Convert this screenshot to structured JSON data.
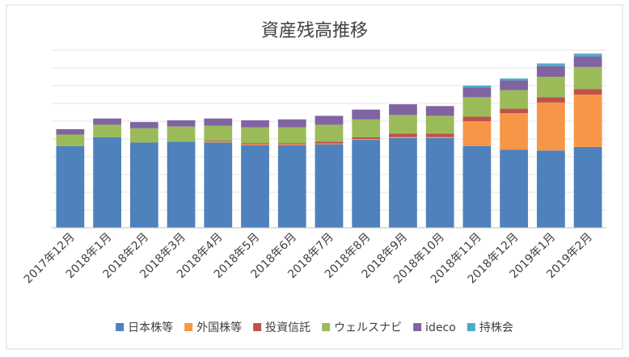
{
  "chart_data": {
    "type": "bar",
    "stacked": true,
    "title": "資産残高推移",
    "xlabel": "",
    "ylabel": "",
    "ylim": [
      0,
      100
    ],
    "y_tick_labels_visible": false,
    "legend_position": "bottom",
    "categories": [
      "2017年12月",
      "2018年1月",
      "2018年2月",
      "2018年3月",
      "2018年4月",
      "2018年5月",
      "2018年6月",
      "2018年7月",
      "2018年8月",
      "2018年9月",
      "2018年10月",
      "2018年11月",
      "2018年12月",
      "2019年1月",
      "2019年2月"
    ],
    "series": [
      {
        "name": "日本株等",
        "color": "#4F81BD",
        "values": [
          46,
          51,
          48,
          48.5,
          48,
          46.5,
          46.5,
          47,
          49.5,
          50.5,
          50.5,
          46,
          44,
          43.5,
          45.5
        ]
      },
      {
        "name": "外国株等",
        "color": "#F79646",
        "values": [
          0,
          0,
          0,
          0,
          0.5,
          0.5,
          0.5,
          0.5,
          0.5,
          0.5,
          0.5,
          14,
          20.5,
          27,
          29.5
        ]
      },
      {
        "name": "投資信託",
        "color": "#C0504D",
        "values": [
          0,
          0,
          0,
          0,
          0.5,
          0.5,
          0.5,
          1,
          1,
          2,
          2,
          2.5,
          2.5,
          3,
          3
        ]
      },
      {
        "name": "ウェルスナビ",
        "color": "#9BBB59",
        "values": [
          6.5,
          7,
          8,
          8.5,
          8.5,
          9,
          9,
          9.5,
          10,
          10.5,
          10,
          11,
          10.5,
          11.5,
          12.5
        ]
      },
      {
        "name": "ideco",
        "color": "#8064A2",
        "values": [
          3,
          3.5,
          3.5,
          3.5,
          4,
          4,
          4.5,
          5,
          5.5,
          6,
          5.5,
          5.5,
          5.5,
          6,
          6
        ]
      },
      {
        "name": "持株会",
        "color": "#4BACC6",
        "values": [
          0,
          0,
          0,
          0,
          0,
          0,
          0,
          0,
          0,
          0,
          0,
          1,
          1,
          1.5,
          1.5
        ]
      }
    ]
  }
}
